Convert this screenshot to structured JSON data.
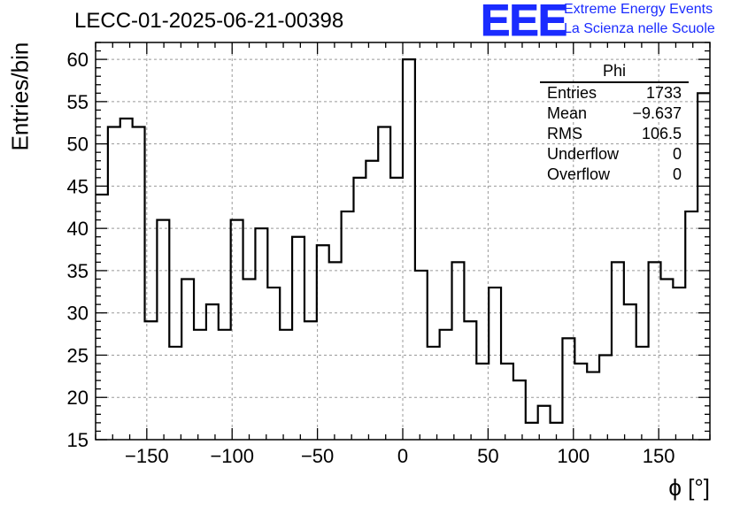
{
  "header": {
    "title": "LECC-01-2025-06-21-00398",
    "logo_text": "EEE",
    "logo_line1": "Extreme Energy Events",
    "logo_line2": "La Scienza nelle Scuole",
    "brand_color": "#1a2bff"
  },
  "stats": {
    "name": "Phi",
    "rows": [
      {
        "label": "Entries",
        "value": "1733"
      },
      {
        "label": "Mean",
        "value": "−9.637"
      },
      {
        "label": "RMS",
        "value": "106.5"
      },
      {
        "label": "Underflow",
        "value": "0"
      },
      {
        "label": "Overflow",
        "value": "0"
      }
    ]
  },
  "chart_data": {
    "type": "histogram",
    "title": "LECC-01-2025-06-21-00398",
    "xlabel": "ϕ [°]",
    "ylabel": "Entries/bin",
    "xlim": [
      -180,
      180
    ],
    "ylim": [
      15,
      62
    ],
    "bin_width": 7.2,
    "bin_edges_start": -180,
    "values": [
      44,
      52,
      53,
      52,
      29,
      41,
      26,
      34,
      28,
      31,
      28,
      41,
      34,
      40,
      33,
      28,
      39,
      29,
      38,
      36,
      42,
      46,
      48,
      52,
      46,
      60,
      35,
      26,
      28,
      36,
      29,
      24,
      33,
      24,
      22,
      17,
      19,
      17,
      27,
      24,
      23,
      25,
      36,
      31,
      26,
      36,
      34,
      33,
      42,
      56
    ],
    "xticks": [
      -150,
      -100,
      -50,
      0,
      50,
      100,
      150
    ],
    "xtick_labels": [
      "−150",
      "−100",
      "−50",
      "0",
      "50",
      "100",
      "150"
    ],
    "yticks": [
      15,
      20,
      25,
      30,
      35,
      40,
      45,
      50,
      55,
      60
    ],
    "yminor_step": 1,
    "xminor_step": 10,
    "grid": true,
    "line_color": "#000000",
    "grid_color": "#999999"
  }
}
